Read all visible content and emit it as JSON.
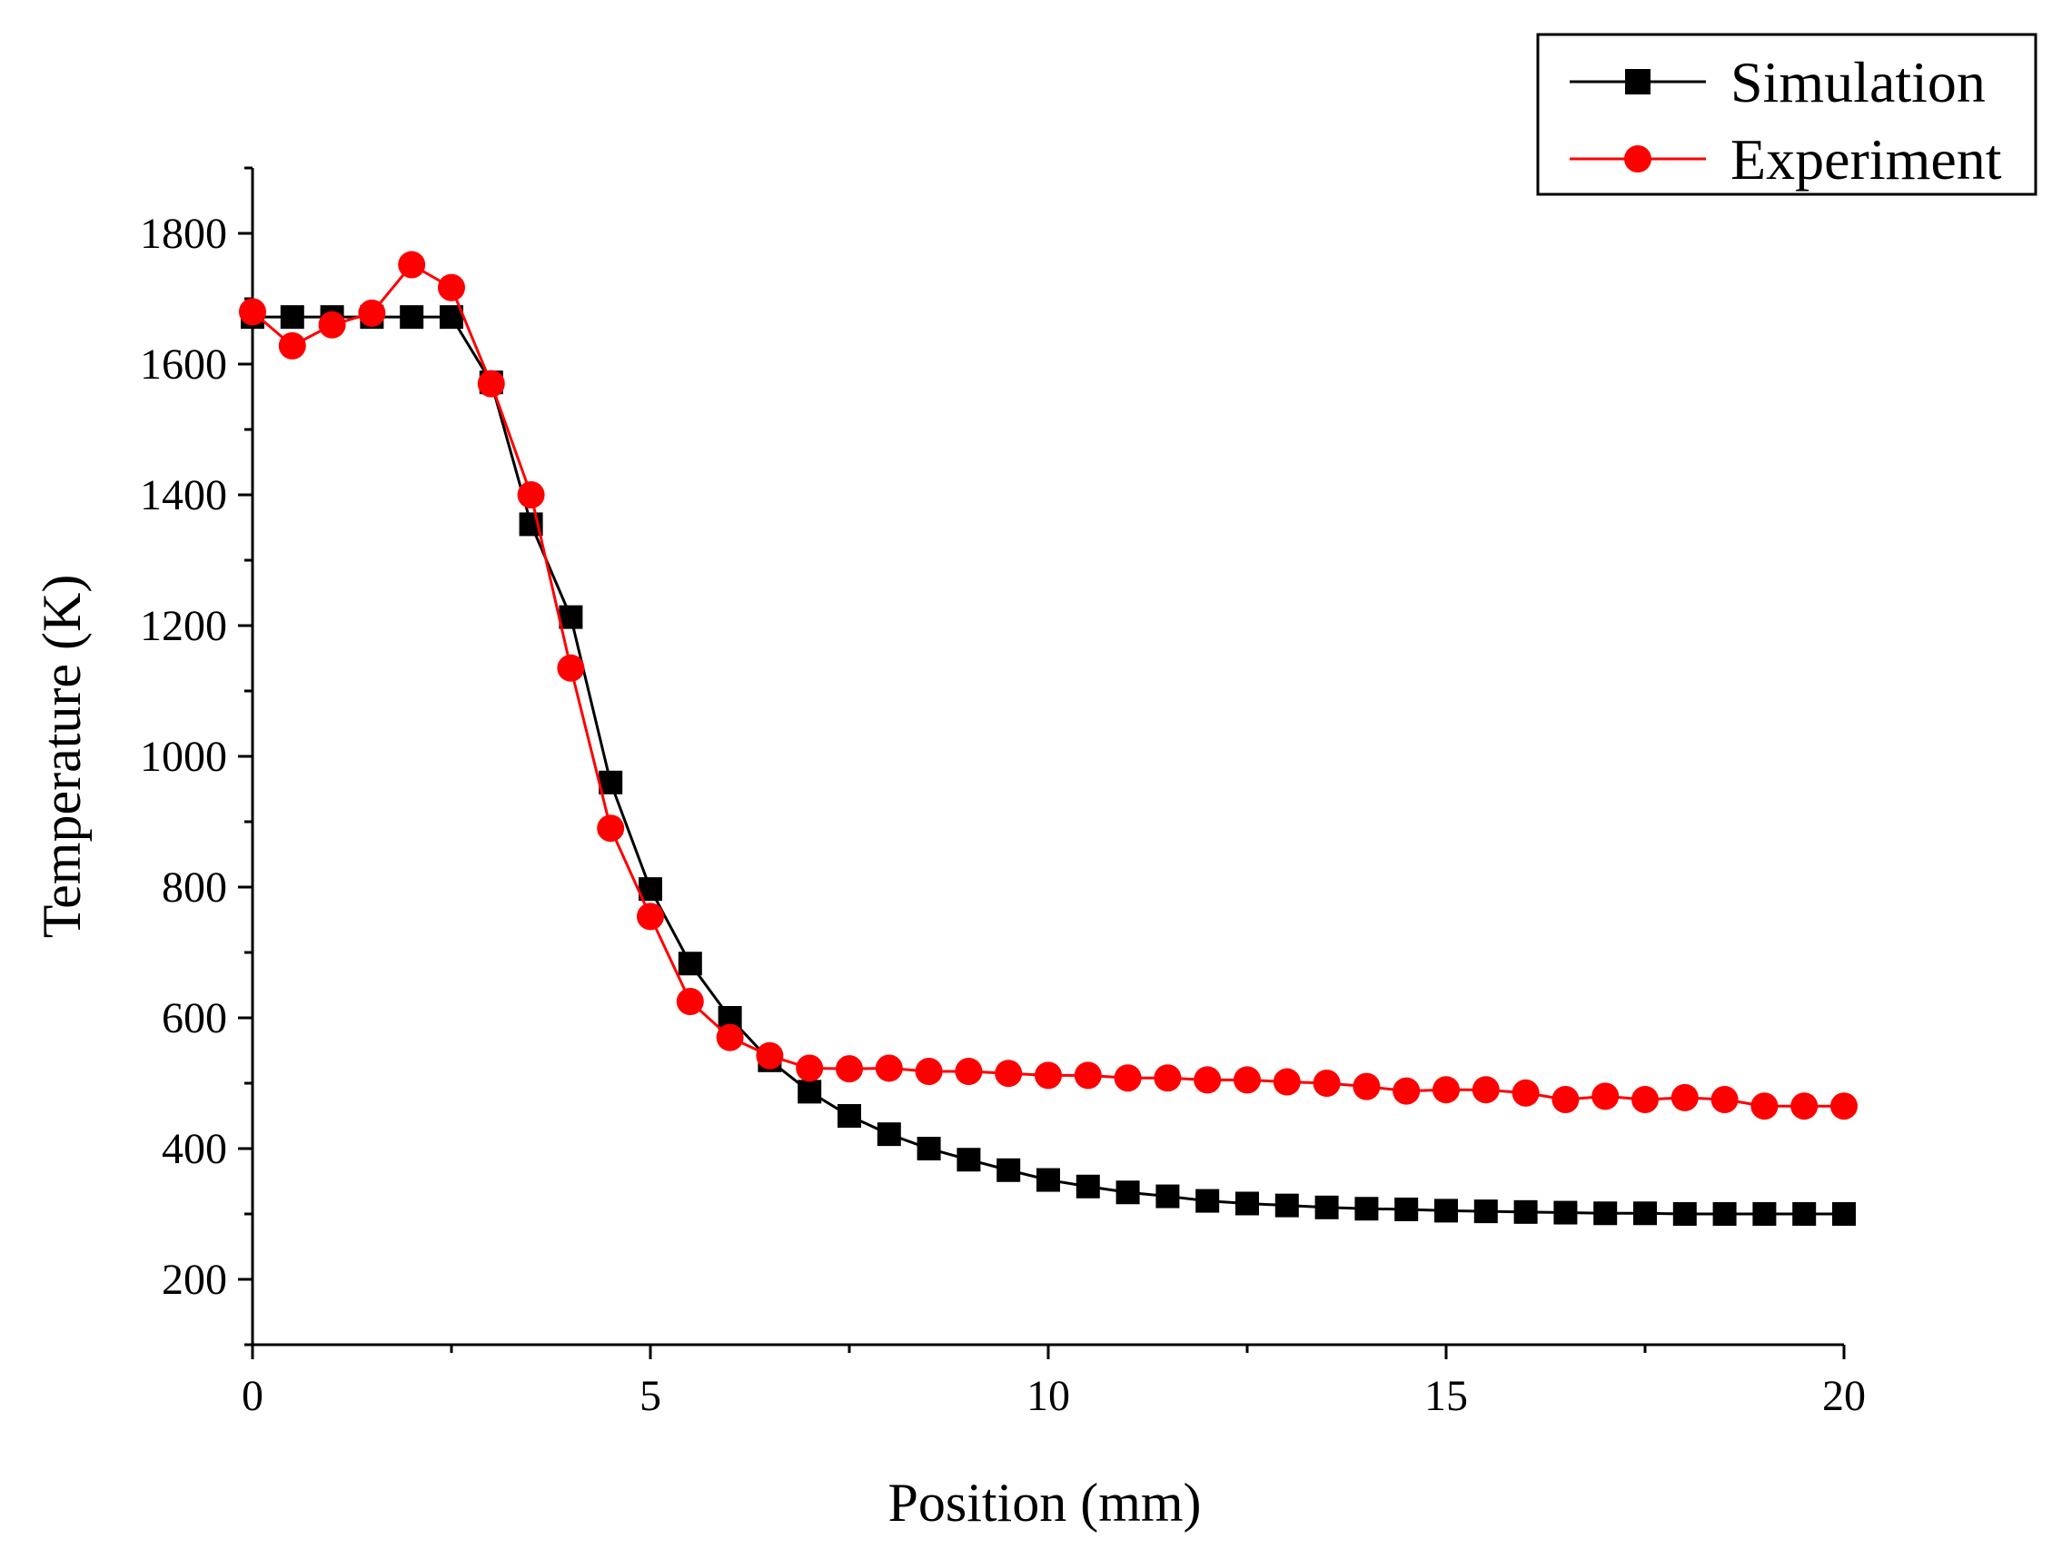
{
  "chart_data": {
    "type": "line",
    "title": "",
    "xlabel": "Position (mm)",
    "ylabel": "Temperature (K)",
    "xlim": [
      0,
      20
    ],
    "ylim": [
      100,
      1900
    ],
    "xticks": [
      0,
      5,
      10,
      15,
      20
    ],
    "yticks": [
      200,
      400,
      600,
      800,
      1000,
      1200,
      1400,
      1600,
      1800
    ],
    "grid": false,
    "legend_position": "top-right",
    "series": [
      {
        "name": "Simulation",
        "color": "#000000",
        "marker": "square",
        "x": [
          0,
          0.5,
          1,
          1.5,
          2,
          2.5,
          3,
          3.5,
          4,
          4.5,
          5,
          5.5,
          6,
          6.5,
          7,
          7.5,
          8,
          8.5,
          9,
          9.5,
          10,
          10.5,
          11,
          11.5,
          12,
          12.5,
          13,
          13.5,
          14,
          14.5,
          15,
          15.5,
          16,
          16.5,
          17,
          17.5,
          18,
          18.5,
          19,
          19.5,
          20
        ],
        "y": [
          1672,
          1672,
          1672,
          1672,
          1672,
          1672,
          1572,
          1355,
          1213,
          960,
          797,
          683,
          600,
          535,
          487,
          450,
          422,
          400,
          383,
          367,
          352,
          342,
          333,
          327,
          320,
          316,
          313,
          310,
          308,
          307,
          305,
          304,
          303,
          302,
          301,
          301,
          300,
          300,
          300,
          300,
          300
        ]
      },
      {
        "name": "Experiment",
        "color": "#ff0000",
        "marker": "circle",
        "x": [
          0,
          0.5,
          1,
          1.5,
          2,
          2.5,
          3,
          3.5,
          4,
          4.5,
          5,
          5.5,
          6,
          6.5,
          7,
          7.5,
          8,
          8.5,
          9,
          9.5,
          10,
          10.5,
          11,
          11.5,
          12,
          12.5,
          13,
          13.5,
          14,
          14.5,
          15,
          15.5,
          16,
          16.5,
          17,
          17.5,
          18,
          18.5,
          19,
          19.5,
          20
        ],
        "y": [
          1680,
          1628,
          1660,
          1678,
          1752,
          1717,
          1570,
          1400,
          1135,
          890,
          755,
          625,
          570,
          542,
          523,
          522,
          523,
          518,
          518,
          515,
          512,
          512,
          508,
          508,
          505,
          505,
          502,
          500,
          495,
          488,
          490,
          490,
          485,
          475,
          480,
          475,
          478,
          475,
          465,
          465,
          465
        ]
      }
    ]
  }
}
